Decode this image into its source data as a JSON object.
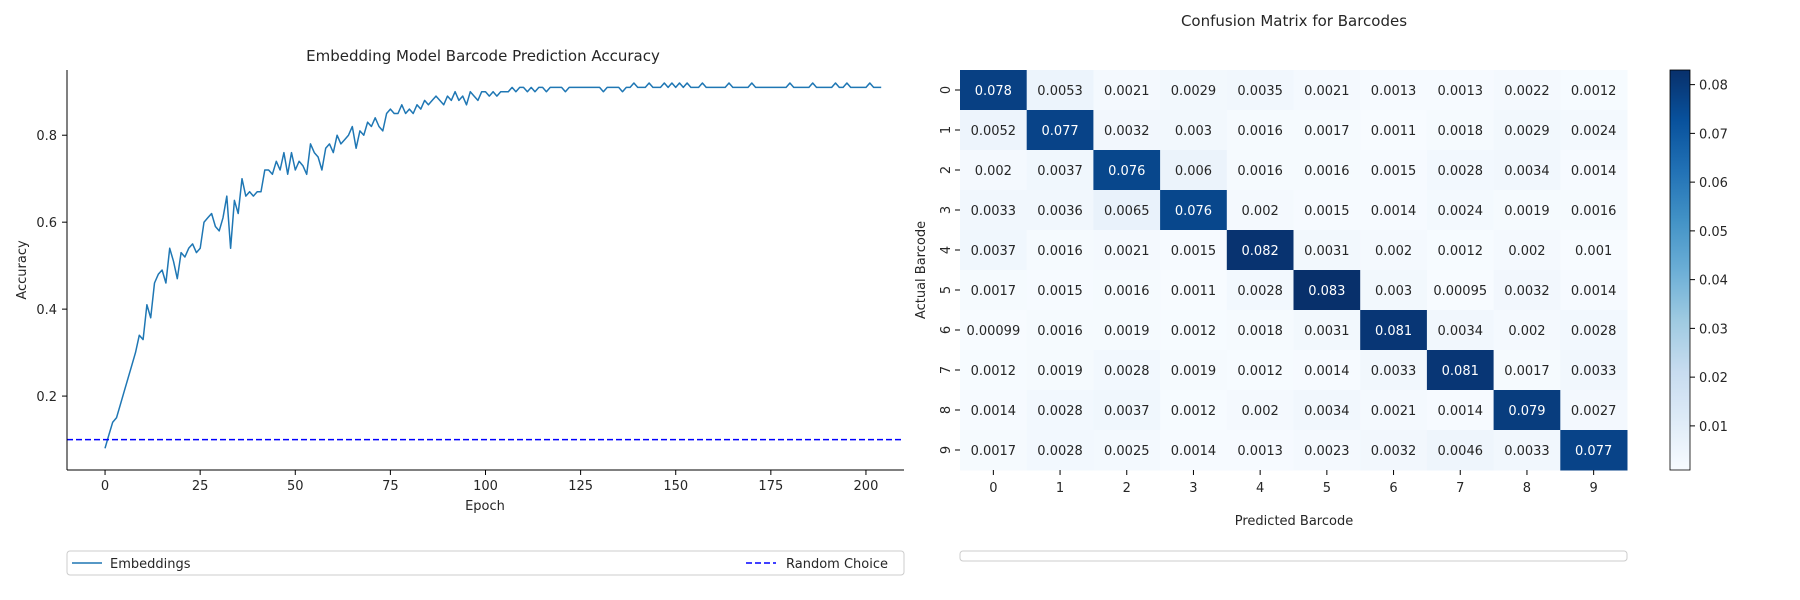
{
  "chart_data": [
    {
      "type": "line",
      "title": "Embedding Model Barcode Prediction Accuracy",
      "xlabel": "Epoch",
      "ylabel": "Accuracy",
      "xlim": [
        -10,
        210
      ],
      "ylim": [
        0.03,
        0.95
      ],
      "xticks": [
        0,
        25,
        50,
        75,
        100,
        125,
        150,
        175,
        200
      ],
      "yticks": [
        0.2,
        0.4,
        0.6,
        0.8
      ],
      "grid": false,
      "legend_position": "bottom",
      "series": [
        {
          "name": "Embeddings",
          "style": "solid",
          "color": "#1f77b4",
          "x_start": 0,
          "x_step": 1,
          "values": [
            0.08,
            0.11,
            0.14,
            0.15,
            0.18,
            0.21,
            0.24,
            0.27,
            0.3,
            0.34,
            0.33,
            0.41,
            0.38,
            0.46,
            0.48,
            0.49,
            0.46,
            0.54,
            0.51,
            0.47,
            0.53,
            0.52,
            0.54,
            0.55,
            0.53,
            0.54,
            0.6,
            0.61,
            0.62,
            0.59,
            0.58,
            0.61,
            0.66,
            0.54,
            0.65,
            0.62,
            0.7,
            0.66,
            0.67,
            0.66,
            0.67,
            0.67,
            0.72,
            0.72,
            0.71,
            0.74,
            0.72,
            0.76,
            0.71,
            0.76,
            0.72,
            0.74,
            0.73,
            0.71,
            0.78,
            0.76,
            0.75,
            0.72,
            0.77,
            0.78,
            0.76,
            0.8,
            0.78,
            0.79,
            0.8,
            0.82,
            0.77,
            0.81,
            0.8,
            0.83,
            0.82,
            0.84,
            0.82,
            0.81,
            0.85,
            0.86,
            0.85,
            0.85,
            0.87,
            0.85,
            0.86,
            0.85,
            0.87,
            0.86,
            0.88,
            0.87,
            0.88,
            0.89,
            0.88,
            0.87,
            0.89,
            0.88,
            0.9,
            0.88,
            0.89,
            0.87,
            0.9,
            0.89,
            0.88,
            0.9,
            0.9,
            0.89,
            0.9,
            0.89,
            0.9,
            0.9,
            0.9,
            0.91,
            0.9,
            0.91,
            0.91,
            0.9,
            0.91,
            0.9,
            0.91,
            0.91,
            0.9,
            0.91,
            0.91,
            0.91,
            0.91,
            0.9,
            0.91,
            0.91,
            0.91,
            0.91,
            0.91,
            0.91,
            0.91,
            0.91,
            0.91,
            0.9,
            0.91,
            0.91,
            0.91,
            0.91,
            0.9,
            0.91,
            0.91,
            0.92,
            0.91,
            0.91,
            0.91,
            0.92,
            0.91,
            0.91,
            0.91,
            0.92,
            0.91,
            0.92,
            0.91,
            0.92,
            0.91,
            0.92,
            0.91,
            0.91,
            0.91,
            0.92,
            0.91,
            0.91,
            0.91,
            0.91,
            0.91,
            0.91,
            0.92,
            0.91,
            0.91,
            0.91,
            0.91,
            0.91,
            0.92,
            0.91,
            0.91,
            0.91,
            0.91,
            0.91,
            0.91,
            0.91,
            0.91,
            0.91,
            0.92,
            0.91,
            0.91,
            0.91,
            0.91,
            0.91,
            0.92,
            0.91,
            0.91,
            0.91,
            0.91,
            0.91,
            0.92,
            0.91,
            0.91,
            0.92,
            0.91,
            0.91,
            0.91,
            0.91,
            0.91,
            0.92,
            0.91,
            0.91,
            0.91
          ]
        },
        {
          "name": "Random Choice",
          "style": "dashed",
          "color": "#0000ff",
          "constant": 0.1
        }
      ]
    },
    {
      "type": "heatmap",
      "title": "Confusion Matrix for Barcodes",
      "xlabel": "Predicted Barcode",
      "ylabel": "Actual Barcode",
      "x_categories": [
        "0",
        "1",
        "2",
        "3",
        "4",
        "5",
        "6",
        "7",
        "8",
        "9"
      ],
      "y_categories": [
        "0",
        "1",
        "2",
        "3",
        "4",
        "5",
        "6",
        "7",
        "8",
        "9"
      ],
      "colormap": "Blues",
      "color_min": 0.00095,
      "color_max": 0.083,
      "colorbar_ticks": [
        0.01,
        0.02,
        0.03,
        0.04,
        0.05,
        0.06,
        0.07,
        0.08
      ],
      "cells": [
        [
          "0.078",
          "0.0053",
          "0.0021",
          "0.0029",
          "0.0035",
          "0.0021",
          "0.0013",
          "0.0013",
          "0.0022",
          "0.0012"
        ],
        [
          "0.0052",
          "0.077",
          "0.0032",
          "0.003",
          "0.0016",
          "0.0017",
          "0.0011",
          "0.0018",
          "0.0029",
          "0.0024"
        ],
        [
          "0.002",
          "0.0037",
          "0.076",
          "0.006",
          "0.0016",
          "0.0016",
          "0.0015",
          "0.0028",
          "0.0034",
          "0.0014"
        ],
        [
          "0.0033",
          "0.0036",
          "0.0065",
          "0.076",
          "0.002",
          "0.0015",
          "0.0014",
          "0.0024",
          "0.0019",
          "0.0016"
        ],
        [
          "0.0037",
          "0.0016",
          "0.0021",
          "0.0015",
          "0.082",
          "0.0031",
          "0.002",
          "0.0012",
          "0.002",
          "0.001"
        ],
        [
          "0.0017",
          "0.0015",
          "0.0016",
          "0.0011",
          "0.0028",
          "0.083",
          "0.003",
          "0.00095",
          "0.0032",
          "0.0014"
        ],
        [
          "0.00099",
          "0.0016",
          "0.0019",
          "0.0012",
          "0.0018",
          "0.0031",
          "0.081",
          "0.0034",
          "0.002",
          "0.0028"
        ],
        [
          "0.0012",
          "0.0019",
          "0.0028",
          "0.0019",
          "0.0012",
          "0.0014",
          "0.0033",
          "0.081",
          "0.0017",
          "0.0033"
        ],
        [
          "0.0014",
          "0.0028",
          "0.0037",
          "0.0012",
          "0.002",
          "0.0034",
          "0.0021",
          "0.0014",
          "0.079",
          "0.0027"
        ],
        [
          "0.0017",
          "0.0028",
          "0.0025",
          "0.0014",
          "0.0013",
          "0.0023",
          "0.0032",
          "0.0046",
          "0.0033",
          "0.077"
        ]
      ]
    }
  ]
}
